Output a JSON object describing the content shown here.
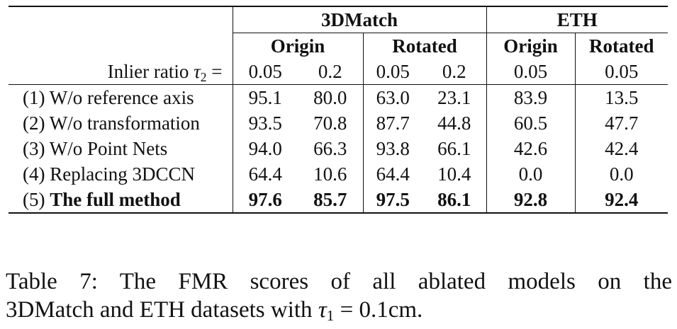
{
  "table": {
    "datasets": [
      "3DMatch",
      "ETH"
    ],
    "subgroups": {
      "match_origin": "Origin",
      "match_rotated": "Rotated",
      "eth_origin": "Origin",
      "eth_rotated": "Rotated"
    },
    "inlier_label": "Inlier ratio",
    "inlier_symbol": "τ",
    "inlier_sub": "2",
    "inlier_eq": "=",
    "thresholds": [
      "0.05",
      "0.2",
      "0.05",
      "0.2",
      "0.05",
      "0.05"
    ],
    "rows": [
      {
        "label": "(1) W/o reference axis",
        "values": [
          "95.1",
          "80.0",
          "63.0",
          "23.1",
          "83.9",
          "13.5"
        ]
      },
      {
        "label": "(2) W/o transformation",
        "values": [
          "93.5",
          "70.8",
          "87.7",
          "44.8",
          "60.5",
          "47.7"
        ]
      },
      {
        "label": "(3) W/o Point Nets",
        "values": [
          "94.0",
          "66.3",
          "93.8",
          "66.1",
          "42.6",
          "42.4"
        ]
      },
      {
        "label": "(4) Replacing 3DCCN",
        "values": [
          "64.4",
          "10.6",
          "64.4",
          "10.4",
          "0.0",
          "0.0"
        ]
      }
    ],
    "full": {
      "prefix": "(5)",
      "name": "The full method",
      "values": [
        "97.6",
        "85.7",
        "97.5",
        "86.1",
        "92.8",
        "92.4"
      ]
    }
  },
  "caption": {
    "line1": "Table 7: The FMR scores of all ablated models on the",
    "line2_pre": "3DMatch and ETH datasets with",
    "symbol": "τ",
    "sub": "1",
    "line2_post": "= 0.1cm."
  }
}
